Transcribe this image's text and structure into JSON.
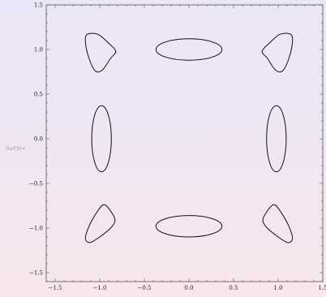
{
  "cell_label": "Out[8]=",
  "chart_data": {
    "type": "line",
    "title": "",
    "xlabel": "",
    "ylabel": "",
    "xlim": [
      -1.6,
      1.5
    ],
    "ylim": [
      -1.6,
      1.5
    ],
    "x_ticks": [
      -1.5,
      -1.0,
      -0.5,
      0.0,
      0.5,
      1.0,
      1.5
    ],
    "x_tick_labels": [
      "−1.5",
      "−1.0",
      "−0.5",
      "0.0",
      "0.5",
      "1.0",
      "1.5"
    ],
    "y_ticks": [
      1.5,
      1.0,
      0.5,
      0.0,
      -0.5,
      -1.0,
      -1.5
    ],
    "y_tick_labels": [
      "1.5",
      "1.0",
      "0.5",
      "0.0",
      "−0.5",
      "−1.0",
      "−1.5"
    ],
    "frame": true,
    "grid": false,
    "curve_color": "#111111",
    "series": [
      {
        "shape": "ellipse",
        "center": [
          0.0,
          1.0
        ],
        "radii": [
          0.37,
          0.12
        ]
      },
      {
        "shape": "ellipse",
        "center": [
          0.0,
          -0.98
        ],
        "radii": [
          0.37,
          0.12
        ]
      },
      {
        "shape": "ellipse",
        "center": [
          -0.98,
          0.0
        ],
        "radii": [
          0.11,
          0.37
        ]
      },
      {
        "shape": "ellipse",
        "center": [
          0.98,
          0.0
        ],
        "radii": [
          0.11,
          0.37
        ]
      },
      {
        "shape": "closed-curve",
        "points": [
          [
            -1.14,
            1.17
          ],
          [
            -1.02,
            1.17
          ],
          [
            -0.9,
            1.07
          ],
          [
            -0.82,
            0.98
          ],
          [
            -0.88,
            0.9
          ],
          [
            -0.97,
            0.77
          ],
          [
            -1.05,
            0.76
          ],
          [
            -1.12,
            0.9
          ],
          [
            -1.16,
            1.08
          ]
        ]
      },
      {
        "shape": "closed-curve",
        "points": [
          [
            1.14,
            1.17
          ],
          [
            1.02,
            1.17
          ],
          [
            0.9,
            1.07
          ],
          [
            0.82,
            0.98
          ],
          [
            0.88,
            0.9
          ],
          [
            0.97,
            0.77
          ],
          [
            1.05,
            0.76
          ],
          [
            1.12,
            0.9
          ],
          [
            1.16,
            1.08
          ]
        ]
      },
      {
        "shape": "closed-curve",
        "points": [
          [
            -0.96,
            -0.74
          ],
          [
            -0.9,
            -0.78
          ],
          [
            -0.83,
            -0.9
          ],
          [
            -0.86,
            -0.98
          ],
          [
            -0.96,
            -1.07
          ],
          [
            -1.1,
            -1.16
          ],
          [
            -1.16,
            -1.12
          ],
          [
            -1.12,
            -0.98
          ],
          [
            -1.03,
            -0.82
          ]
        ]
      },
      {
        "shape": "closed-curve",
        "points": [
          [
            0.96,
            -0.74
          ],
          [
            0.9,
            -0.78
          ],
          [
            0.83,
            -0.9
          ],
          [
            0.86,
            -0.98
          ],
          [
            0.96,
            -1.07
          ],
          [
            1.1,
            -1.16
          ],
          [
            1.16,
            -1.12
          ],
          [
            1.12,
            -0.98
          ],
          [
            1.03,
            -0.82
          ]
        ]
      }
    ]
  }
}
